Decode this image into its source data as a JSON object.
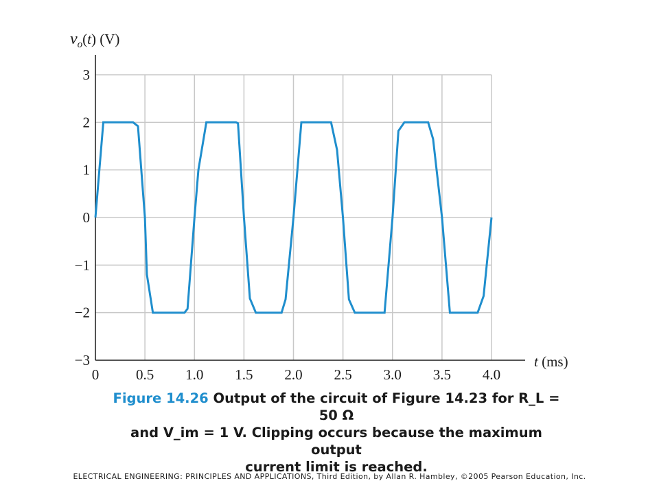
{
  "chart_data": {
    "type": "line",
    "ylabel": "v_o(t) (V)",
    "xlabel": "t (ms)",
    "xlim": [
      0,
      4.0
    ],
    "ylim": [
      -3,
      3
    ],
    "x_ticks": [
      "0",
      "0.5",
      "1.0",
      "1.5",
      "2.0",
      "2.5",
      "3.0",
      "3.5",
      "4.0"
    ],
    "x_tick_values": [
      0,
      0.5,
      1.0,
      1.5,
      2.0,
      2.5,
      3.0,
      3.5,
      4.0
    ],
    "y_ticks": [
      "3",
      "2",
      "1",
      "0",
      "−1",
      "−2",
      "−3"
    ],
    "y_tick_values": [
      3,
      2,
      1,
      0,
      -1,
      -2,
      -3
    ],
    "grid": true,
    "color": "#1f8ecd",
    "series": [
      {
        "x": [
          0,
          0.08,
          0.38,
          0.43,
          0.5,
          0.52,
          0.58,
          0.9,
          0.93,
          1.0,
          1.04,
          1.12,
          1.42,
          1.44,
          1.5,
          1.56,
          1.62,
          1.88,
          1.92,
          2.0,
          2.08,
          2.38,
          2.44,
          2.5,
          2.56,
          2.62,
          2.92,
          3.0,
          3.06,
          3.12,
          3.36,
          3.41,
          3.5,
          3.58,
          3.86,
          3.92,
          4.0
        ],
        "y": [
          0,
          2.0,
          2.0,
          1.92,
          0,
          -1.2,
          -2.0,
          -2.0,
          -1.92,
          0,
          1.0,
          2.0,
          2.0,
          1.98,
          0,
          -1.7,
          -2.0,
          -2.0,
          -1.72,
          0,
          2.0,
          2.0,
          1.42,
          0,
          -1.72,
          -2.0,
          -2.0,
          0,
          1.82,
          2.0,
          2.0,
          1.65,
          0,
          -2.0,
          -2.0,
          -1.65,
          0
        ]
      }
    ]
  },
  "caption": {
    "label": "Figure 14.26",
    "line1": "Output of the circuit of Figure 14.23 for R_L = 50 Ω",
    "line2": "and V_im = 1 V. Clipping occurs because the maximum output",
    "line3": "current limit is reached."
  },
  "footer": "ELECTRICAL ENGINEERING: PRINCIPLES AND APPLICATIONS, Third Edition, by Allan R. Hambley, ©2005 Pearson Education, Inc."
}
